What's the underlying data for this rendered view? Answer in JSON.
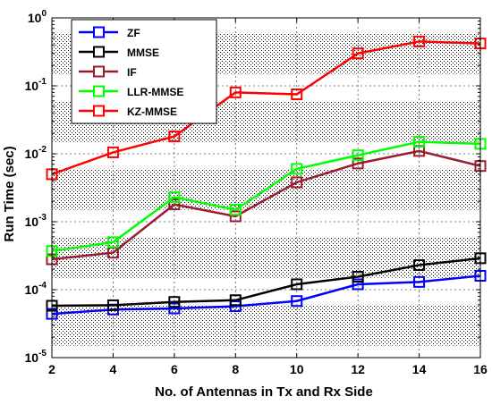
{
  "chart_data": {
    "type": "line",
    "title": "",
    "xlabel": "No. of Antennas in Tx and Rx Side",
    "ylabel": "Run Time (sec)",
    "x": [
      2,
      4,
      6,
      8,
      10,
      12,
      14,
      16
    ],
    "xlim": [
      2,
      16
    ],
    "ylim": [
      1e-05,
      1
    ],
    "yscale": "log",
    "grid": true,
    "legend_position": "top-left",
    "x_ticks": [
      "2",
      "4",
      "6",
      "8",
      "10",
      "12",
      "14",
      "16"
    ],
    "y_ticks": [
      {
        "base": "10",
        "exp": "-5"
      },
      {
        "base": "10",
        "exp": "-4"
      },
      {
        "base": "10",
        "exp": "-3"
      },
      {
        "base": "10",
        "exp": "-2"
      },
      {
        "base": "10",
        "exp": "-1"
      },
      {
        "base": "10",
        "exp": "0"
      }
    ],
    "series": [
      {
        "name": "ZF",
        "color": "#0000ff",
        "values": [
          4.4e-05,
          5.1e-05,
          5.3e-05,
          5.7e-05,
          6.8e-05,
          0.00012,
          0.00013,
          0.00016
        ]
      },
      {
        "name": "MMSE",
        "color": "#000000",
        "values": [
          5.8e-05,
          5.9e-05,
          6.6e-05,
          7e-05,
          0.00012,
          0.000155,
          0.00023,
          0.00029
        ]
      },
      {
        "name": "IF",
        "color": "#9b1b30",
        "values": [
          0.00028,
          0.00035,
          0.0018,
          0.0012,
          0.0038,
          0.0072,
          0.011,
          0.0066
        ]
      },
      {
        "name": "LLR-MMSE",
        "color": "#00ff00",
        "values": [
          0.00037,
          0.0005,
          0.0023,
          0.0015,
          0.006,
          0.0095,
          0.015,
          0.014
        ]
      },
      {
        "name": "KZ-MMSE",
        "color": "#ff0000",
        "values": [
          0.005,
          0.0105,
          0.018,
          0.08,
          0.075,
          0.3,
          0.45,
          0.42
        ]
      }
    ]
  }
}
